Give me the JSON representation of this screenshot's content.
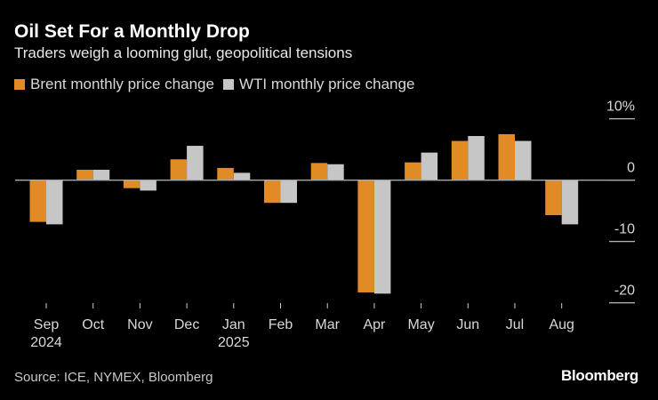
{
  "title": "Oil Set For a Monthly Drop",
  "subtitle": "Traders weigh a looming glut, geopolitical tensions",
  "source": "Source: ICE, NYMEX, Bloomberg",
  "logo": "Bloomberg",
  "chart_data": {
    "type": "bar",
    "categories": [
      "Sep",
      "Oct",
      "Nov",
      "Dec",
      "Jan",
      "Feb",
      "Mar",
      "Apr",
      "May",
      "Jun",
      "Jul",
      "Aug"
    ],
    "category_sublabels": [
      "2024",
      "",
      "",
      "",
      "2025",
      "",
      "",
      "",
      "",
      "",
      "",
      ""
    ],
    "series": [
      {
        "name": "Brent monthly price change",
        "color": "#e08b26",
        "values": [
          -6.8,
          1.7,
          -1.3,
          3.4,
          2.0,
          -3.7,
          2.8,
          -18.3,
          2.9,
          6.4,
          7.5,
          -5.7
        ]
      },
      {
        "name": "WTI monthly price change",
        "color": "#c6c6c6",
        "values": [
          -7.2,
          1.7,
          -1.7,
          5.6,
          1.2,
          -3.7,
          2.6,
          -18.5,
          4.5,
          7.2,
          6.4,
          -7.2
        ]
      }
    ],
    "yticks": [
      10,
      0,
      -10,
      -20
    ],
    "ytick_labels": [
      "10%",
      "0",
      "-10",
      "-20"
    ],
    "ylim": [
      -20,
      10
    ],
    "legend": "top-left",
    "grid": false
  }
}
